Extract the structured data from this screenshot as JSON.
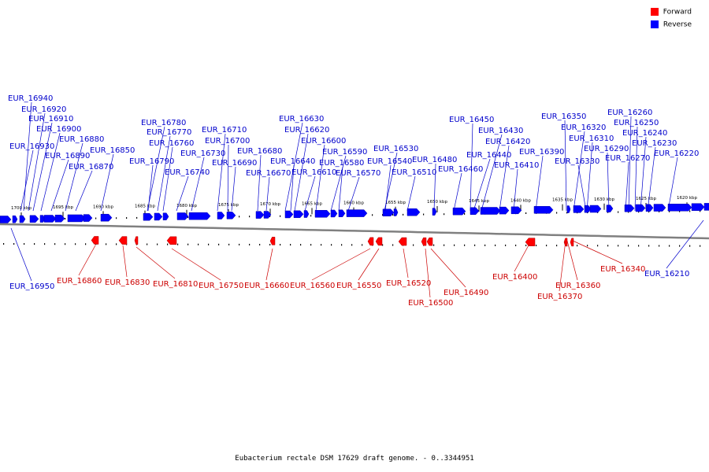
{
  "legend": {
    "items": [
      {
        "label": "Forward",
        "color": "#ff0000"
      },
      {
        "label": "Reverse",
        "color": "#0000ff"
      }
    ]
  },
  "caption": "Eubacterium rectale DSM 17629 draft genome. - 0..3344951",
  "colors": {
    "forward": "#ff0000",
    "reverse": "#0000ff",
    "forward_label": "#cc0000",
    "reverse_label": "#0000cc",
    "backbone": "#808080"
  },
  "scale": {
    "unit": "kbp",
    "ticks": [
      "1700 kbp",
      "1695 kbp",
      "1690 kbp",
      "1685 kbp",
      "1680 kbp",
      "1675 kbp",
      "1670 kbp",
      "1665 kbp",
      "1660 kbp",
      "1655 kbp",
      "1650 kbp",
      "1645 kbp",
      "1640 kbp",
      "1635 kbp",
      "1630 kbp",
      "1625 kbp",
      "1620 kbp"
    ]
  },
  "reverse_genes": [
    "EUR_16940",
    "EUR_16920",
    "EUR_16910",
    "EUR_16900",
    "EUR_16930",
    "EUR_16880",
    "EUR_16890",
    "EUR_16850",
    "EUR_16870",
    "EUR_16780",
    "EUR_16770",
    "EUR_16760",
    "EUR_16790",
    "EUR_16740",
    "EUR_16730",
    "EUR_16710",
    "EUR_16700",
    "EUR_16690",
    "EUR_16680",
    "EUR_16670",
    "EUR_16630",
    "EUR_16620",
    "EUR_16640",
    "EUR_16610",
    "EUR_16600",
    "EUR_16590",
    "EUR_16580",
    "EUR_16570",
    "EUR_16530",
    "EUR_16540",
    "EUR_16510",
    "EUR_16480",
    "EUR_16460",
    "EUR_16450",
    "EUR_16430",
    "EUR_16440",
    "EUR_16420",
    "EUR_16410",
    "EUR_16390",
    "EUR_16350",
    "EUR_16320",
    "EUR_16310",
    "EUR_16330",
    "EUR_16290",
    "EUR_16260",
    "EUR_16250",
    "EUR_16240",
    "EUR_16270",
    "EUR_16230",
    "EUR_16220",
    "EUR_16950",
    "EUR_16210"
  ],
  "forward_genes": [
    "EUR_16860",
    "EUR_16830",
    "EUR_16810",
    "EUR_16750",
    "EUR_16660",
    "EUR_16560",
    "EUR_16550",
    "EUR_16520",
    "EUR_16500",
    "EUR_16490",
    "EUR_16400",
    "EUR_16370",
    "EUR_16360",
    "EUR_16340"
  ]
}
